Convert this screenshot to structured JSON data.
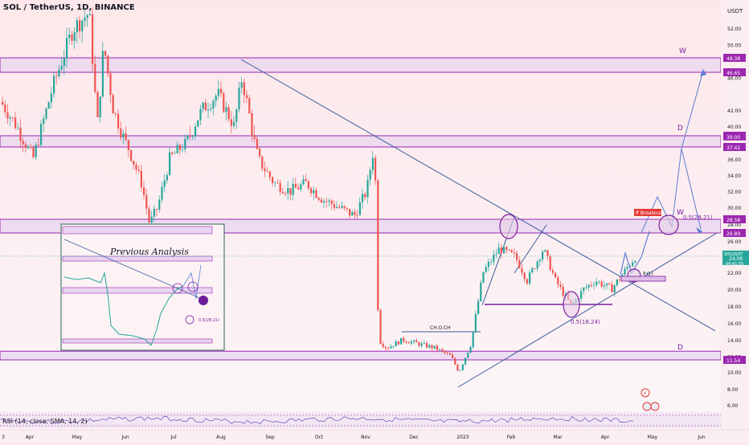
{
  "header": {
    "symbol": "SOL / TetherUS, 1D, BINANCE",
    "currency": "USDT"
  },
  "price_axis": {
    "ticks": [
      "52.00",
      "50.00",
      "46.00",
      "42.00",
      "40.00",
      "36.00",
      "34.00",
      "32.00",
      "30.00",
      "28.00",
      "26.00",
      "22.00",
      "20.00",
      "18.00",
      "16.00",
      "14.00",
      "12.00",
      "10.00",
      "8.00",
      "6.00"
    ],
    "zone_labels": [
      {
        "text": "48.38",
        "color": "#9c27b0"
      },
      {
        "text": "46.65",
        "color": "#9c27b0"
      },
      {
        "text": "39.10",
        "color": "#9c27b0"
      },
      {
        "text": "39.00",
        "color": "#9c27b0"
      },
      {
        "text": "37.42",
        "color": "#9c27b0"
      },
      {
        "text": "28.58",
        "color": "#9c27b0"
      },
      {
        "text": "26.89",
        "color": "#9c27b0"
      },
      {
        "text": "11.54",
        "color": "#9c27b0"
      }
    ],
    "last_price": {
      "symbol": "SOLUSDT",
      "price": "24.06",
      "countdown": "04:41:55"
    }
  },
  "time_axis": {
    "ticks": [
      "3",
      "Apr",
      "May",
      "Jun",
      "Jul",
      "Aug",
      "Sep",
      "Oct",
      "Nov",
      "Dec",
      "2023",
      "Feb",
      "Mar",
      "Apr",
      "May",
      "Jun"
    ]
  },
  "annotations": {
    "w_top": "W",
    "d_mid": "D",
    "w_mid": "W",
    "d_low": "D",
    "breakout": "If Breakout",
    "fib_top": "0.5(28.21)",
    "fib_low": "0.5(18.24)",
    "choch": "CH.O.CH",
    "poi": "P.O.I",
    "inset_title": "Previous Analysis",
    "inset_fib": "0.5(28.21)"
  },
  "rsi": {
    "label": "RSI (14, close, SMA, 14, 2)"
  },
  "colors": {
    "zone_fill": "#e8d5f0",
    "zone_border": "#9c27b0",
    "up": "#26a69a",
    "down": "#ef5350",
    "trendline": "#3d5a9e",
    "projection": "#5b7bd5",
    "background": "#fbe9ec"
  },
  "chart_data": {
    "type": "candlestick",
    "title": "SOL / TetherUS, 1D, BINANCE",
    "x_label": "",
    "y_label": "USDT",
    "ylim": [
      5,
      56
    ],
    "price_path": [
      [
        "Mar 2022",
        43
      ],
      [
        "Apr 2022",
        52
      ],
      [
        "Apr 2022",
        48
      ],
      [
        "May 2022",
        44
      ],
      [
        "May 2022",
        40
      ],
      [
        "Jun 2022",
        36
      ],
      [
        "Jun 2022",
        31
      ],
      [
        "Jul 2022",
        38
      ],
      [
        "Jul 2022",
        35
      ],
      [
        "Aug 2022",
        44
      ],
      [
        "Aug 2022",
        41
      ],
      [
        "Sep 2022",
        34
      ],
      [
        "Sep 2022",
        33
      ],
      [
        "Oct 2022",
        31
      ],
      [
        "Oct 2022",
        29
      ],
      [
        "Nov 2022",
        37
      ],
      [
        "Nov 2022",
        14
      ],
      [
        "Dec 2022",
        13
      ],
      [
        "Dec 2022",
        10
      ],
      [
        "Jan 2023",
        14
      ],
      [
        "Jan 2023",
        22
      ],
      [
        "Feb 2023",
        24
      ],
      [
        "Feb 2023",
        21
      ],
      [
        "Mar 2023",
        19
      ],
      [
        "Mar 2023",
        21
      ],
      [
        "Apr 2023",
        21
      ],
      [
        "Apr 2023",
        24.06
      ]
    ],
    "resistance_zones": [
      {
        "low": 46.65,
        "high": 48.38
      },
      {
        "low": 37.42,
        "high": 39.1
      },
      {
        "low": 26.89,
        "high": 28.58
      },
      {
        "low": 11.54,
        "high": 12.6
      }
    ],
    "fib_levels": [
      28.21,
      18.24
    ]
  }
}
